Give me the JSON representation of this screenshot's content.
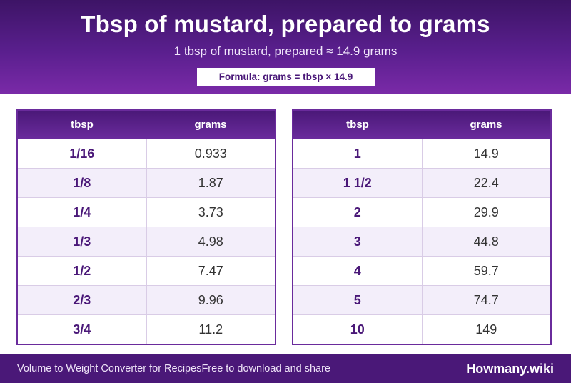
{
  "header": {
    "title": "Tbsp of mustard, prepared to grams",
    "subtitle": "1 tbsp of mustard, prepared ≈ 14.9 grams",
    "formula": "Formula: grams = tbsp × 14.9"
  },
  "tables": {
    "left": {
      "col_tbsp": "tbsp",
      "col_grams": "grams",
      "rows": [
        {
          "tbsp": "1/16",
          "grams": "0.933"
        },
        {
          "tbsp": "1/8",
          "grams": "1.87"
        },
        {
          "tbsp": "1/4",
          "grams": "3.73"
        },
        {
          "tbsp": "1/3",
          "grams": "4.98"
        },
        {
          "tbsp": "1/2",
          "grams": "7.47"
        },
        {
          "tbsp": "2/3",
          "grams": "9.96"
        },
        {
          "tbsp": "3/4",
          "grams": "11.2"
        }
      ]
    },
    "right": {
      "col_tbsp": "tbsp",
      "col_grams": "grams",
      "rows": [
        {
          "tbsp": "1",
          "grams": "14.9"
        },
        {
          "tbsp": "1 1/2",
          "grams": "22.4"
        },
        {
          "tbsp": "2",
          "grams": "29.9"
        },
        {
          "tbsp": "3",
          "grams": "44.8"
        },
        {
          "tbsp": "4",
          "grams": "59.7"
        },
        {
          "tbsp": "5",
          "grams": "74.7"
        },
        {
          "tbsp": "10",
          "grams": "149"
        }
      ]
    }
  },
  "footer": {
    "tagline": "Volume to Weight Converter for Recipes",
    "share": "Free to download and share",
    "brand": "Howmany.wiki"
  }
}
